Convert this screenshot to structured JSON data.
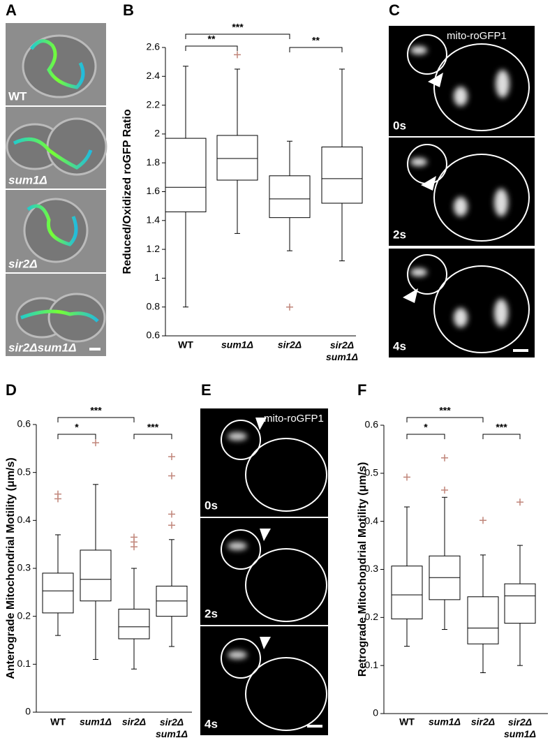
{
  "panel_labels": [
    "A",
    "B",
    "C",
    "D",
    "E",
    "F"
  ],
  "panel_a": {
    "labels": [
      "WT",
      "sum1Δ",
      "sir2Δ",
      "sir2Δsum1Δ"
    ]
  },
  "panel_c": {
    "caption": "mito-roGFP1",
    "times": [
      "0s",
      "2s",
      "4s"
    ]
  },
  "panel_e": {
    "caption": "mito-roGFP1",
    "times": [
      "0s",
      "2s",
      "4s"
    ]
  },
  "chart_data": [
    {
      "type": "box",
      "ylabel": "Reduced/Oxidized roGFP Ratio",
      "categories": [
        "WT",
        "sum1Δ",
        "sir2Δ",
        "sir2Δ sum1Δ"
      ],
      "boxes": [
        {
          "whislo": 0.8,
          "q1": 1.46,
          "med": 1.63,
          "q3": 1.97,
          "whishi": 2.47,
          "fliers": []
        },
        {
          "whislo": 1.31,
          "q1": 1.68,
          "med": 1.83,
          "q3": 1.99,
          "whishi": 2.45,
          "fliers": [
            2.55
          ]
        },
        {
          "whislo": 1.19,
          "q1": 1.42,
          "med": 1.55,
          "q3": 1.71,
          "whishi": 1.95,
          "fliers": [
            0.8
          ]
        },
        {
          "whislo": 1.12,
          "q1": 1.52,
          "med": 1.69,
          "q3": 1.91,
          "whishi": 2.45,
          "fliers": []
        }
      ],
      "ylim": [
        0.6,
        2.6
      ],
      "yticks": [
        0.6,
        0.8,
        1.0,
        1.2,
        1.4,
        1.6,
        1.8,
        2.0,
        2.2,
        2.4,
        2.6
      ],
      "box_color": "#000000",
      "flier_color": "#c0857a",
      "significance": [
        {
          "from": 0,
          "to": 1,
          "label": "**"
        },
        {
          "from": 0,
          "to": 2,
          "label": "***"
        },
        {
          "from": 2,
          "to": 3,
          "label": "**"
        }
      ]
    },
    {
      "type": "box",
      "ylabel": "Anterograde Mitochondrial Motility (μm/s)",
      "categories": [
        "WT",
        "sum1Δ",
        "sir2Δ",
        "sir2Δ sum1Δ"
      ],
      "boxes": [
        {
          "whislo": 0.16,
          "q1": 0.207,
          "med": 0.253,
          "q3": 0.29,
          "whishi": 0.37,
          "fliers": [
            0.445,
            0.455
          ]
        },
        {
          "whislo": 0.11,
          "q1": 0.232,
          "med": 0.277,
          "q3": 0.338,
          "whishi": 0.475,
          "fliers": [
            0.562
          ]
        },
        {
          "whislo": 0.09,
          "q1": 0.153,
          "med": 0.178,
          "q3": 0.215,
          "whishi": 0.3,
          "fliers": [
            0.345,
            0.355,
            0.365
          ]
        },
        {
          "whislo": 0.137,
          "q1": 0.2,
          "med": 0.232,
          "q3": 0.263,
          "whishi": 0.36,
          "fliers": [
            0.39,
            0.413,
            0.493,
            0.533
          ]
        }
      ],
      "ylim": [
        0,
        0.6
      ],
      "yticks": [
        0,
        0.1,
        0.2,
        0.3,
        0.4,
        0.5,
        0.6
      ],
      "box_color": "#000000",
      "flier_color": "#c0857a",
      "significance": [
        {
          "from": 0,
          "to": 1,
          "label": "*"
        },
        {
          "from": 0,
          "to": 2,
          "label": "***"
        },
        {
          "from": 2,
          "to": 3,
          "label": "***"
        }
      ]
    },
    {
      "type": "box",
      "ylabel": "Retrograde Mitochondrial Motility (μm/s)",
      "categories": [
        "WT",
        "sum1Δ",
        "sir2Δ",
        "sir2Δ sum1Δ"
      ],
      "boxes": [
        {
          "whislo": 0.14,
          "q1": 0.197,
          "med": 0.247,
          "q3": 0.307,
          "whishi": 0.43,
          "fliers": [
            0.492
          ]
        },
        {
          "whislo": 0.175,
          "q1": 0.237,
          "med": 0.283,
          "q3": 0.328,
          "whishi": 0.45,
          "fliers": [
            0.465,
            0.532
          ]
        },
        {
          "whislo": 0.085,
          "q1": 0.145,
          "med": 0.178,
          "q3": 0.243,
          "whishi": 0.33,
          "fliers": [
            0.402
          ]
        },
        {
          "whislo": 0.1,
          "q1": 0.188,
          "med": 0.245,
          "q3": 0.27,
          "whishi": 0.35,
          "fliers": [
            0.44
          ]
        }
      ],
      "ylim": [
        0,
        0.6
      ],
      "yticks": [
        0,
        0.1,
        0.2,
        0.3,
        0.4,
        0.5,
        0.6
      ],
      "box_color": "#000000",
      "flier_color": "#c0857a",
      "significance": [
        {
          "from": 0,
          "to": 1,
          "label": "*"
        },
        {
          "from": 0,
          "to": 2,
          "label": "***"
        },
        {
          "from": 2,
          "to": 3,
          "label": "***"
        }
      ]
    }
  ]
}
